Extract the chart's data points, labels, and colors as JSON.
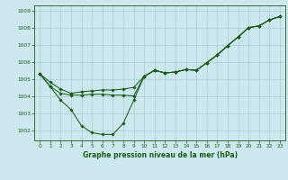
{
  "title": "Graphe pression niveau de la mer (hPa)",
  "bg_color": "#cce8ee",
  "line_color": "#1a5c1a",
  "grid_color": "#aacccc",
  "x_ticks": [
    0,
    1,
    2,
    3,
    4,
    5,
    6,
    7,
    8,
    9,
    10,
    11,
    12,
    13,
    14,
    15,
    16,
    17,
    18,
    19,
    20,
    21,
    22,
    23
  ],
  "y_ticks": [
    1002,
    1003,
    1004,
    1005,
    1006,
    1007,
    1008,
    1009
  ],
  "ylim": [
    1001.4,
    1009.3
  ],
  "xlim": [
    -0.5,
    23.5
  ],
  "series": [
    [
      1005.3,
      1004.55,
      1003.75,
      1003.2,
      1002.25,
      1001.85,
      1001.75,
      1001.75,
      1002.4,
      1003.75,
      1005.15,
      1005.5,
      1005.35,
      1005.4,
      1005.55,
      1005.5,
      1005.95,
      1006.4,
      1006.95,
      1007.45,
      1008.0,
      1008.1,
      1008.45,
      1008.65
    ],
    [
      1005.3,
      1004.55,
      1004.15,
      1004.05,
      1004.05,
      1004.1,
      1004.1,
      1004.05,
      1004.05,
      1004.0,
      1005.15,
      1005.5,
      1005.35,
      1005.4,
      1005.55,
      1005.5,
      1005.95,
      1006.4,
      1006.95,
      1007.45,
      1008.0,
      1008.1,
      1008.45,
      1008.65
    ],
    [
      1005.3,
      1004.8,
      1004.4,
      1004.15,
      1004.25,
      1004.3,
      1004.35,
      1004.35,
      1004.4,
      1004.5,
      1005.15,
      1005.5,
      1005.35,
      1005.4,
      1005.55,
      1005.5,
      1005.95,
      1006.4,
      1006.95,
      1007.45,
      1008.0,
      1008.1,
      1008.45,
      1008.65
    ]
  ]
}
